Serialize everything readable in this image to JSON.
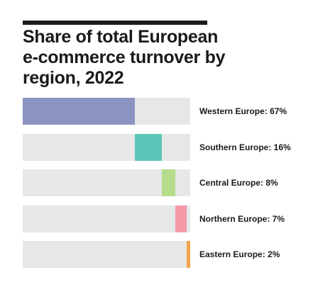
{
  "title": "Share of total European e-commerce turnover by region, 2022",
  "chart_data": {
    "type": "bar",
    "orientation": "horizontal",
    "style": "stacked-offset",
    "title": "Share of total European e-commerce turnover by region, 2022",
    "categories": [
      "Western Europe",
      "Southern Europe",
      "Central Europe",
      "Northern Europe",
      "Eastern Europe"
    ],
    "values": [
      67,
      16,
      8,
      7,
      2
    ],
    "unit": "%",
    "labels": [
      "Western Europe: 67%",
      "Southern Europe: 16%",
      "Central Europe: 8%",
      "Northern Europe: 7%",
      "Eastern Europe: 2%"
    ],
    "colors": [
      "#8b93c0",
      "#5cc5b8",
      "#b4dc8a",
      "#f49aa7",
      "#f5a34c"
    ],
    "track_color": "#e6e7e8",
    "xlim": [
      0,
      100
    ],
    "grid": false,
    "legend": "none"
  }
}
